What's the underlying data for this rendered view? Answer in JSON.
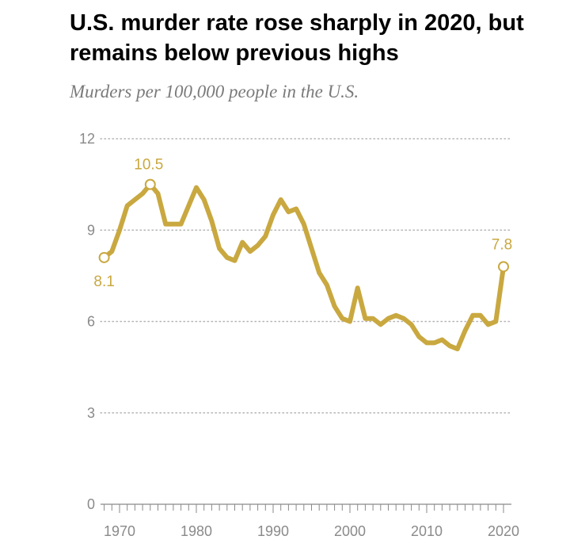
{
  "title": "U.S. murder rate rose sharply in 2020, but remains below previous highs",
  "subtitle": "Murders per 100,000 people in the U.S.",
  "colors": {
    "line": "#C9A840",
    "grid": "#b5b5b5",
    "axis": "#8a8a8a"
  },
  "chart_data": {
    "type": "line",
    "title": "U.S. murder rate rose sharply in 2020, but remains below previous highs",
    "subtitle": "Murders per 100,000 people in the U.S.",
    "xlabel": "",
    "ylabel": "",
    "xlim": [
      1968,
      2020
    ],
    "ylim": [
      0,
      12
    ],
    "x_ticks": [
      1970,
      1980,
      1990,
      2000,
      2010,
      2020
    ],
    "y_ticks": [
      0,
      3,
      6,
      9,
      12
    ],
    "grid": "horizontal dotted",
    "series": [
      {
        "x": [
          1968,
          1969,
          1970,
          1971,
          1972,
          1973,
          1974,
          1975,
          1976,
          1977,
          1978,
          1979,
          1980,
          1981,
          1982,
          1983,
          1984,
          1985,
          1986,
          1987,
          1988,
          1989,
          1990,
          1991,
          1992,
          1993,
          1994,
          1995,
          1996,
          1997,
          1998,
          1999,
          2000,
          2001,
          2002,
          2003,
          2004,
          2005,
          2006,
          2007,
          2008,
          2009,
          2010,
          2011,
          2012,
          2013,
          2014,
          2015,
          2016,
          2017,
          2018,
          2019,
          2020
        ],
        "values": [
          8.1,
          8.3,
          9.0,
          9.8,
          10.0,
          10.2,
          10.5,
          10.2,
          9.2,
          9.2,
          9.2,
          9.8,
          10.4,
          10.0,
          9.3,
          8.4,
          8.1,
          8.0,
          8.6,
          8.3,
          8.5,
          8.8,
          9.5,
          10.0,
          9.6,
          9.7,
          9.2,
          8.4,
          7.6,
          7.2,
          6.5,
          6.1,
          6.0,
          7.1,
          6.1,
          6.1,
          5.9,
          6.1,
          6.2,
          6.1,
          5.9,
          5.5,
          5.3,
          5.3,
          5.4,
          5.2,
          5.1,
          5.7,
          6.2,
          6.2,
          5.9,
          6.0,
          7.8
        ]
      }
    ],
    "annotations": [
      {
        "x": 1968,
        "y": 8.1,
        "label": "8.1"
      },
      {
        "x": 1974,
        "y": 10.5,
        "label": "10.5"
      },
      {
        "x": 2020,
        "y": 7.8,
        "label": "7.8"
      }
    ]
  }
}
